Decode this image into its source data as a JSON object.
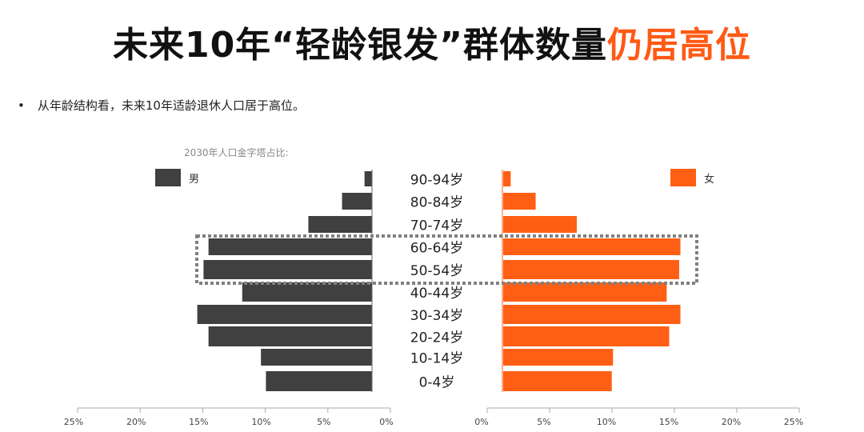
{
  "title": {
    "main": "未来10年“轻龄银发”群体数量",
    "highlight": "仍居高位"
  },
  "bullet": "从年龄结构看，未来10年适龄退休人口居于高位。",
  "colors": {
    "male": "#404040",
    "female": "#ff5f14",
    "accent": "#ff5a14",
    "box": "#808080"
  },
  "chart_data": {
    "type": "bar",
    "title": "2030年人口金字塔占比:",
    "categories": [
      "90-94岁",
      "80-84岁",
      "70-74岁",
      "60-64岁",
      "50-54岁",
      "40-44岁",
      "30-34岁",
      "20-24岁",
      "10-14岁",
      "0-4岁"
    ],
    "series": [
      {
        "name": "男",
        "values": [
          0.6,
          2.4,
          5.1,
          13.1,
          13.5,
          10.4,
          14.0,
          13.1,
          8.9,
          8.5
        ]
      },
      {
        "name": "女",
        "values": [
          0.6,
          2.6,
          5.9,
          14.2,
          14.1,
          13.1,
          14.2,
          13.3,
          8.8,
          8.7
        ]
      }
    ],
    "x_ticks_left": [
      "25%",
      "20%",
      "15%",
      "10%",
      "5%",
      "0%"
    ],
    "x_ticks_right": [
      "0%",
      "5%",
      "10%",
      "15%",
      "20%",
      "25%"
    ],
    "xlim": [
      0,
      25
    ],
    "highlighted": [
      "60-64岁",
      "50-54岁"
    ],
    "legend": "top"
  }
}
